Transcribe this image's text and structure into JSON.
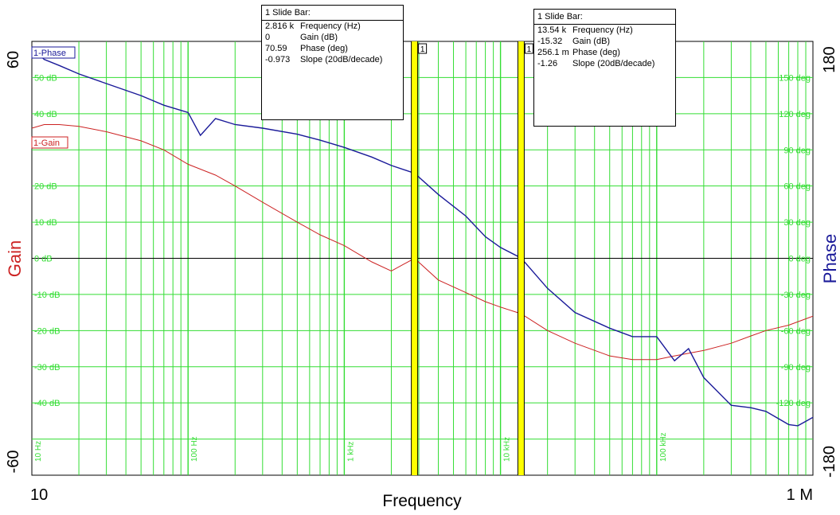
{
  "chart_data": {
    "type": "line",
    "xlabel": "Frequency",
    "x_scale": "log",
    "xlim": [
      10,
      1000000
    ],
    "x_axis_end_labels": [
      "10",
      "1 M"
    ],
    "x_gridline_labels": [
      "10 Hz",
      "100 Hz",
      "1 kHz",
      "10 kHz",
      "100 kHz"
    ],
    "ylabel_left": "Gain",
    "ylim_left": [
      -60,
      60
    ],
    "y_axis_end_labels_left": [
      "60",
      "-60"
    ],
    "y_tick_labels_left": [
      "50 dB",
      "40 dB",
      "20 dB",
      "10 dB",
      "0 dB",
      "-10 dB",
      "-20 dB",
      "-30 dB",
      "-40 dB"
    ],
    "ylabel_right": "Phase",
    "ylim_right": [
      -180,
      180
    ],
    "y_axis_end_labels_right": [
      "180",
      "-180"
    ],
    "y_tick_labels_right": [
      "150 deg",
      "120 deg",
      "90 deg",
      "60 deg",
      "30 deg",
      "0 deg",
      "-30 deg",
      "-60 deg",
      "-90 deg",
      "-120 deg"
    ],
    "grid": true,
    "colors": {
      "gain": "#cc2222",
      "phase": "#1a1a99",
      "grid": "#33dd33",
      "cursor": "#ffff00"
    },
    "series": [
      {
        "name": "1-Gain",
        "axis": "left",
        "x": [
          10,
          12,
          15,
          20,
          30,
          50,
          70,
          100,
          150,
          200,
          300,
          500,
          700,
          1000,
          1500,
          2000,
          2816,
          4000,
          6000,
          8000,
          10000,
          13540,
          20000,
          30000,
          50000,
          70000,
          100000,
          130000,
          200000,
          300000,
          400000,
          500000,
          700000,
          1000000
        ],
        "values": [
          36,
          37,
          37,
          36.5,
          35,
          32.5,
          30,
          26,
          23,
          20,
          15.5,
          10,
          6.5,
          3.5,
          -1,
          -3.5,
          0,
          -6,
          -9.5,
          -12,
          -13.5,
          -15.32,
          -20,
          -23.5,
          -27,
          -28,
          -28,
          -27,
          -25.5,
          -23.5,
          -21.5,
          -20,
          -18.5,
          -16
        ]
      },
      {
        "name": "1-Phase",
        "axis": "right",
        "x": [
          10,
          12,
          15,
          20,
          30,
          50,
          70,
          100,
          120,
          150,
          200,
          300,
          500,
          700,
          1000,
          1500,
          2000,
          2816,
          4000,
          6000,
          8000,
          10000,
          13540,
          20000,
          30000,
          50000,
          70000,
          100000,
          130000,
          160000,
          200000,
          300000,
          400000,
          500000,
          700000,
          800000,
          1000000
        ],
        "values": [
          175,
          165,
          160,
          153,
          145,
          135,
          127,
          121,
          102,
          116,
          111,
          108,
          103,
          98,
          92,
          84,
          77,
          70.59,
          53,
          35,
          18,
          9,
          0.2561,
          -25,
          -45,
          -58,
          -65,
          -65,
          -85,
          -75,
          -99,
          -122,
          -124,
          -127,
          -138,
          -139,
          -132
        ]
      }
    ],
    "cursors": [
      {
        "marker_label": "1",
        "title": "1  Slide Bar:",
        "rows": [
          {
            "value": "2.816 k",
            "label": "Frequency (Hz)"
          },
          {
            "value": "0",
            "label": "Gain (dB)"
          },
          {
            "value": "70.59",
            "label": "Phase (deg)"
          },
          {
            "value": "-0.973",
            "label": "Slope (20dB/decade)"
          }
        ]
      },
      {
        "marker_label": "1",
        "title": "1  Slide Bar:",
        "rows": [
          {
            "value": "13.54 k",
            "label": "Frequency (Hz)"
          },
          {
            "value": "-15.32",
            "label": "Gain (dB)"
          },
          {
            "value": "256.1 m",
            "label": "Phase (deg)"
          },
          {
            "value": "-1.26",
            "label": "Slope (20dB/decade)"
          }
        ]
      }
    ],
    "cursor_x": [
      2816,
      13540
    ]
  }
}
